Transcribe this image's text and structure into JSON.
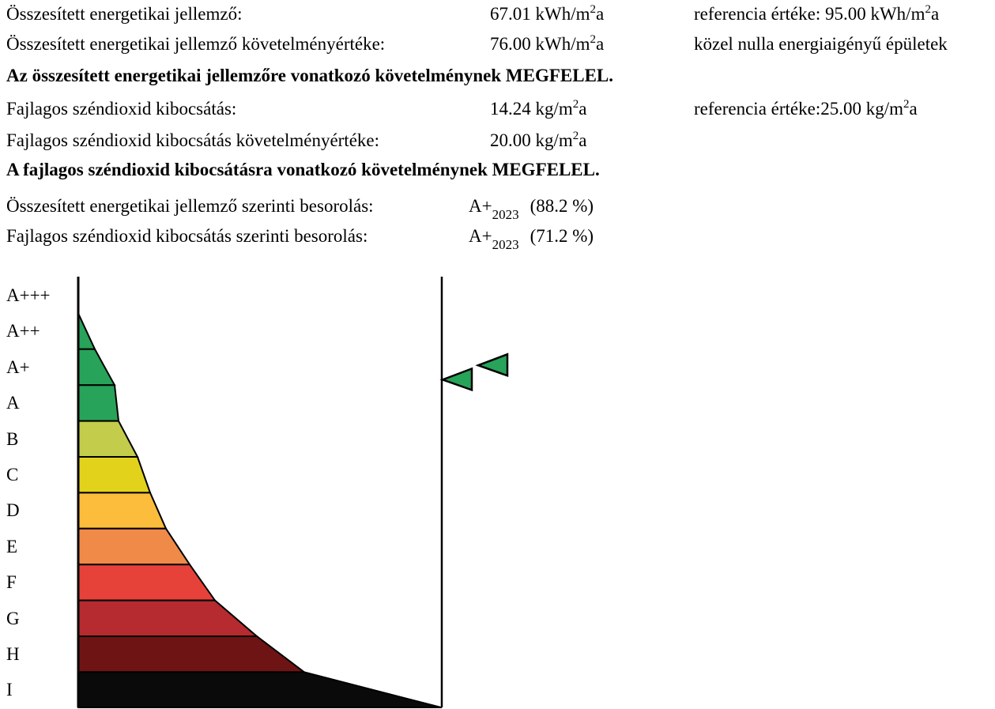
{
  "energy": {
    "label": "Összesített energetikai jellemző:",
    "value": "67.01 kWh/m",
    "value_sup": "2",
    "value_tail": "a",
    "ref_text": "referencia értéke: 95.00 kWh/m",
    "ref_sup": "2",
    "ref_tail": "a"
  },
  "energy_req": {
    "label": "Összesített energetikai jellemző követelményértéke:",
    "value": "76.00 kWh/m",
    "value_sup": "2",
    "value_tail": "a",
    "note": "közel nulla energiaigényű épületek"
  },
  "energy_verdict": "Az összesített energetikai jellemzőre vonatkozó követelménynek MEGFELEL.",
  "co2": {
    "label": "Fajlagos széndioxid kibocsátás:",
    "value": "14.24 kg/m",
    "value_sup": "2",
    "value_tail": "a",
    "ref_text": "referencia értéke:25.00 kg/m",
    "ref_sup": "2",
    "ref_tail": "a"
  },
  "co2_req": {
    "label": "Fajlagos széndioxid kibocsátás követelményértéke:",
    "value": "20.00 kg/m",
    "value_sup": "2",
    "value_tail": "a"
  },
  "co2_verdict": "A fajlagos széndioxid kibocsátásra vonatkozó követelménynek MEGFELEL.",
  "classification": [
    {
      "label": "Összesített energetikai jellemző szerinti besorolás:",
      "grade": "A+",
      "grade_sub": "2023",
      "percent": "(88.2 %)"
    },
    {
      "label": "Fajlagos széndioxid kibocsátás szerinti besorolás:",
      "grade": "A+",
      "grade_sub": "2023",
      "percent": "(71.2 %)"
    }
  ],
  "scale": {
    "grades": [
      "A+++",
      "A++",
      "A+",
      "A",
      "B",
      "C",
      "D",
      "E",
      "F",
      "G",
      "H",
      "I"
    ],
    "colors": [
      "#ffffff",
      "#27a35a",
      "#27a35a",
      "#27a35a",
      "#c3cc4b",
      "#e2d21c",
      "#fbbd3b",
      "#f08a49",
      "#e6423a",
      "#b52b2f",
      "#6e1414",
      "#0a0a0a"
    ],
    "marker_color": "#27a35a",
    "markers": [
      {
        "name": "energy-marker",
        "grade": "A+",
        "offset_rows": 0.85
      },
      {
        "name": "co2-marker",
        "grade": "A+",
        "offset_rows": 0.45
      }
    ]
  }
}
